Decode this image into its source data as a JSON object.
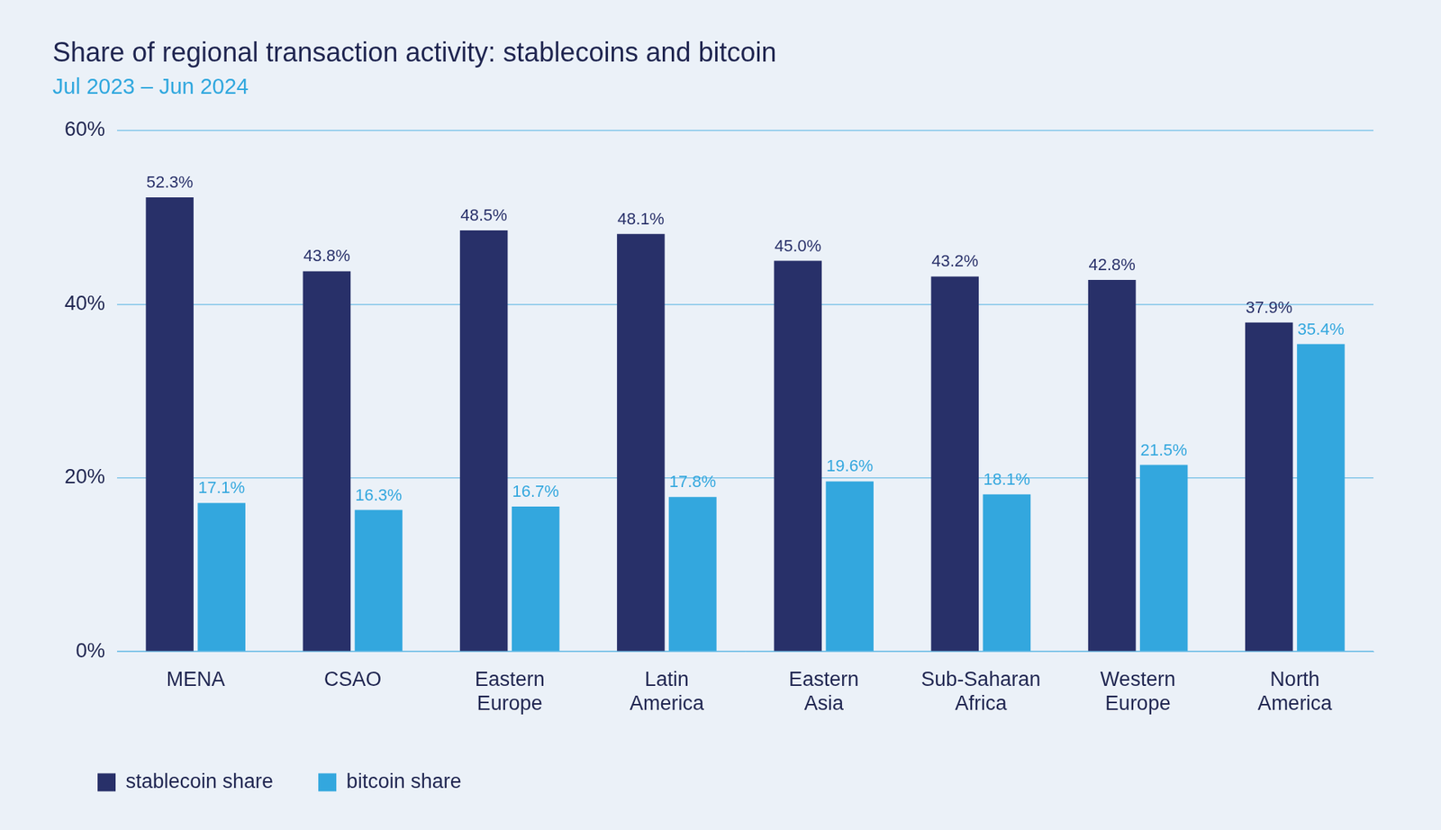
{
  "chart_data": {
    "type": "bar",
    "title": "Share of regional transaction activity: stablecoins and bitcoin",
    "subtitle": "Jul 2023 – Jun 2024",
    "categories": [
      "MENA",
      "CSAO",
      "Eastern Europe",
      "Latin America",
      "Eastern Asia",
      "Sub-Saharan Africa",
      "Western Europe",
      "North America"
    ],
    "series": [
      {
        "name": "stablecoin share",
        "color": "#283069",
        "values": [
          52.3,
          43.8,
          48.5,
          48.1,
          45.0,
          43.2,
          42.8,
          37.9
        ],
        "value_labels": [
          "52.3%",
          "43.8%",
          "48.5%",
          "48.1%",
          "45.0%",
          "43.2%",
          "42.8%",
          "37.9%"
        ]
      },
      {
        "name": "bitcoin share",
        "color": "#33a7de",
        "values": [
          17.1,
          16.3,
          16.7,
          17.8,
          19.6,
          18.1,
          21.5,
          35.4
        ],
        "value_labels": [
          "17.1%",
          "16.3%",
          "16.7%",
          "17.8%",
          "19.6%",
          "18.1%",
          "21.5%",
          "35.4%"
        ]
      }
    ],
    "ylim": [
      0,
      60
    ],
    "yticks": [
      {
        "value": 0,
        "label": "0%"
      },
      {
        "value": 20,
        "label": "20%"
      },
      {
        "value": 40,
        "label": "40%"
      },
      {
        "value": 60,
        "label": "60%"
      }
    ],
    "grid": true,
    "legend": "bottom-left",
    "data_labels": true
  }
}
